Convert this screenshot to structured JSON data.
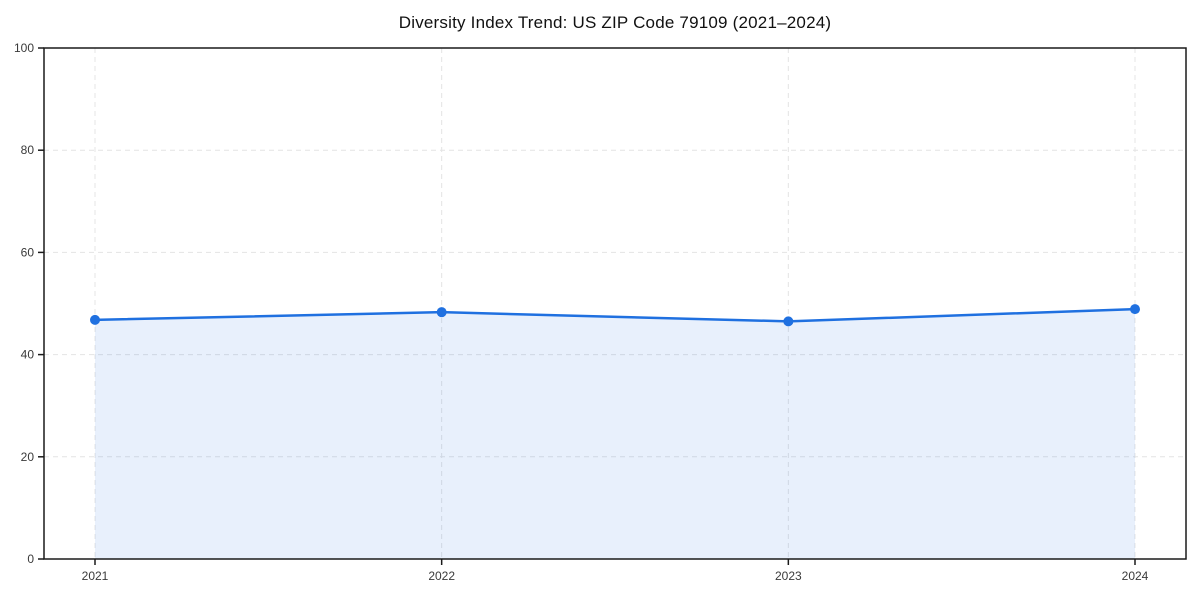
{
  "chart_data": {
    "type": "area",
    "title": "Diversity Index Trend: US ZIP Code 79109 (2021–2024)",
    "series_name": "Diversity Index",
    "categories": [
      "2021",
      "2022",
      "2023",
      "2024"
    ],
    "values": [
      46.8,
      48.3,
      46.5,
      48.9
    ],
    "xlabel": "",
    "ylabel": "",
    "ylim": [
      0,
      100
    ],
    "yticks": [
      0,
      20,
      40,
      60,
      80,
      100
    ],
    "grid": {
      "horizontal": true,
      "vertical": true,
      "style": "dashed",
      "color": "#e4e4e4"
    },
    "legend_position": "none",
    "line_color": "#1f70e0",
    "marker": "circle",
    "marker_color": "#1f70e0",
    "fill_color": "rgba(31,112,224,0.10)",
    "axis_color": "#1a1a1a",
    "tick_label_color": "#3a3a3a",
    "title_color": "#111111",
    "background_color": "#ffffff"
  }
}
